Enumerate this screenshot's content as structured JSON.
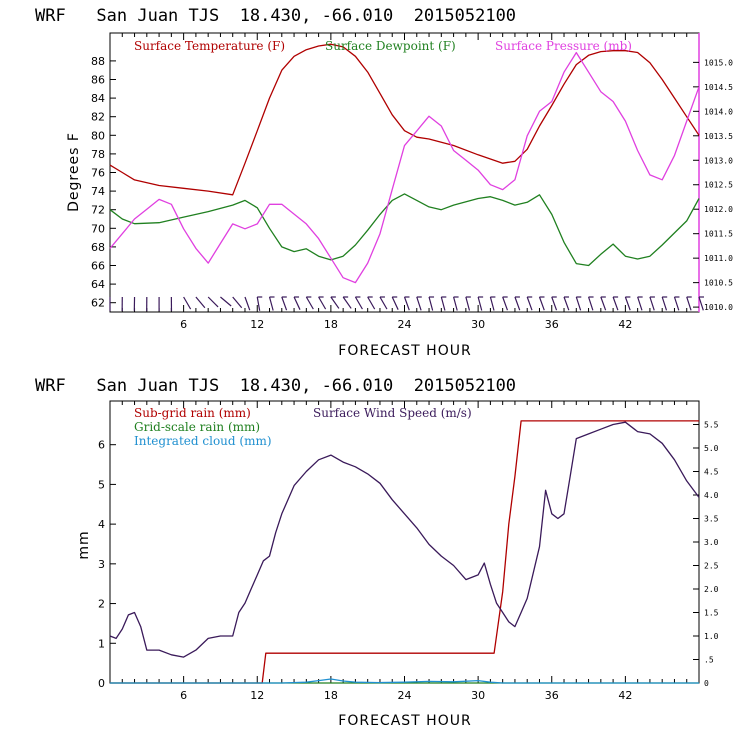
{
  "chart_data": [
    {
      "type": "line",
      "title": "WRF   San Juan TJS  18.430, -66.010  2015052100",
      "xlabel": "FORECAST HOUR",
      "ylabel": "Degrees F",
      "xlim": [
        0,
        48
      ],
      "ylim": [
        61,
        91
      ],
      "y2lim": [
        1009.9,
        1015.6
      ],
      "x_ticks": [
        6,
        12,
        18,
        24,
        30,
        36,
        42
      ],
      "y_ticks": [
        62,
        64,
        66,
        68,
        70,
        72,
        74,
        76,
        78,
        80,
        82,
        84,
        86,
        88
      ],
      "y2_ticks": [
        "1010.0",
        "1010.5",
        "1011.0",
        "1011.5",
        "1012.0",
        "1012.5",
        "1013.0",
        "1013.5",
        "1014.0",
        "1014.5",
        "1015.0"
      ],
      "legend_position": "top",
      "series": [
        {
          "name": "Surface Temperature (F)",
          "color": "#b00000",
          "axis": "left",
          "x": [
            0,
            1,
            2,
            4,
            6,
            8,
            10,
            11,
            12,
            13,
            14,
            15,
            16,
            17,
            18,
            19,
            20,
            21,
            22,
            23,
            24,
            25,
            26,
            28,
            30,
            32,
            33,
            34,
            35,
            36,
            37,
            38,
            39,
            40,
            41,
            42,
            43,
            44,
            45,
            46,
            47,
            48
          ],
          "values": [
            76.8,
            76.0,
            75.2,
            74.6,
            74.3,
            74.0,
            73.6,
            77.0,
            80.5,
            84.0,
            87.0,
            88.5,
            89.2,
            89.6,
            89.8,
            89.5,
            88.5,
            86.8,
            84.5,
            82.2,
            80.5,
            79.8,
            79.6,
            78.9,
            77.9,
            77.0,
            77.2,
            78.5,
            81.0,
            83.2,
            85.5,
            87.6,
            88.6,
            89.0,
            89.1,
            89.1,
            88.9,
            87.8,
            86.0,
            84.0,
            82.0,
            80.0
          ]
        },
        {
          "name": "Surface Dewpoint (F)",
          "color": "#208020",
          "axis": "left",
          "x": [
            0,
            1,
            2,
            4,
            6,
            8,
            10,
            11,
            12,
            13,
            14,
            15,
            16,
            17,
            18,
            19,
            20,
            21,
            22,
            23,
            24,
            25,
            26,
            27,
            28,
            30,
            31,
            32,
            33,
            34,
            35,
            36,
            37,
            38,
            39,
            40,
            41,
            42,
            43,
            44,
            45,
            46,
            47,
            48
          ],
          "values": [
            72.0,
            71.0,
            70.5,
            70.6,
            71.2,
            71.8,
            72.5,
            73.0,
            72.2,
            70.0,
            68.0,
            67.5,
            67.8,
            67.0,
            66.6,
            67.0,
            68.2,
            69.8,
            71.5,
            73.0,
            73.7,
            73.0,
            72.3,
            72.0,
            72.5,
            73.2,
            73.4,
            73.0,
            72.5,
            72.8,
            73.6,
            71.5,
            68.5,
            66.2,
            66.0,
            67.2,
            68.3,
            67.0,
            66.7,
            67.0,
            68.2,
            69.5,
            70.8,
            73.2
          ]
        },
        {
          "name": "Surface Pressure (mb)",
          "color": "#e040e0",
          "axis": "right",
          "x": [
            0,
            1,
            2,
            3,
            4,
            5,
            6,
            7,
            8,
            9,
            10,
            11,
            12,
            13,
            14,
            15,
            16,
            17,
            18,
            19,
            20,
            21,
            22,
            23,
            24,
            25,
            26,
            27,
            28,
            29,
            30,
            31,
            32,
            33,
            34,
            35,
            36,
            37,
            38,
            39,
            40,
            41,
            42,
            43,
            44,
            45,
            46,
            47,
            48
          ],
          "values": [
            1011.2,
            1011.5,
            1011.8,
            1012.0,
            1012.2,
            1012.1,
            1011.6,
            1011.2,
            1010.9,
            1011.3,
            1011.7,
            1011.6,
            1011.7,
            1012.1,
            1012.1,
            1011.9,
            1011.7,
            1011.4,
            1011.0,
            1010.6,
            1010.5,
            1010.9,
            1011.5,
            1012.4,
            1013.3,
            1013.6,
            1013.9,
            1013.7,
            1013.2,
            1013.0,
            1012.8,
            1012.5,
            1012.4,
            1012.6,
            1013.5,
            1014.0,
            1014.2,
            1014.8,
            1015.2,
            1014.8,
            1014.4,
            1014.2,
            1013.8,
            1013.2,
            1012.7,
            1012.6,
            1013.1,
            1013.8,
            1014.5
          ]
        }
      ],
      "wind_barbs": {
        "color": "#3a1a5a",
        "x": [
          0,
          1,
          2,
          3,
          4,
          5,
          6,
          7,
          8,
          9,
          10,
          11,
          12,
          13,
          14,
          15,
          16,
          17,
          18,
          19,
          20,
          21,
          22,
          23,
          24,
          25,
          26,
          27,
          28,
          29,
          30,
          31,
          32,
          33,
          34,
          35,
          36,
          37,
          38,
          39,
          40,
          41,
          42,
          43,
          44,
          45,
          46,
          47,
          48
        ],
        "angle": [
          90,
          95,
          100,
          95,
          90,
          85,
          60,
          50,
          45,
          40,
          50,
          70,
          80,
          75,
          70,
          65,
          60,
          60,
          55,
          55,
          60,
          60,
          60,
          65,
          70,
          72,
          75,
          75,
          75,
          75,
          75,
          75,
          70,
          70,
          70,
          70,
          70,
          70,
          72,
          72,
          70,
          70,
          70,
          72,
          72,
          72,
          72,
          72,
          72
        ]
      }
    },
    {
      "type": "line",
      "title": "WRF   San Juan TJS  18.430, -66.010  2015052100",
      "xlabel": "FORECAST HOUR",
      "ylabel": "mm",
      "xlim": [
        0,
        48
      ],
      "ylim": [
        0,
        7.1
      ],
      "y2lim": [
        0,
        6.0
      ],
      "x_ticks": [
        6,
        12,
        18,
        24,
        30,
        36,
        42
      ],
      "y_ticks": [
        0,
        1,
        2,
        3,
        4,
        5,
        6
      ],
      "y2_ticks": [
        "0",
        ".5",
        "1.0",
        "1.5",
        "2.0",
        "2.5",
        "3.0",
        "3.5",
        "4.0",
        "4.5",
        "5.0",
        "5.5"
      ],
      "legend_position": "top-left",
      "series": [
        {
          "name": "Sub-grid rain (mm)",
          "color": "#b00000",
          "axis": "left",
          "x": [
            0,
            12.4,
            12.7,
            31.3,
            32.0,
            32.5,
            33.0,
            33.5,
            48
          ],
          "values": [
            0,
            0,
            0.75,
            0.75,
            2.3,
            4.0,
            5.2,
            6.6,
            6.6
          ]
        },
        {
          "name": "Grid-scale rain (mm)",
          "color": "#208020",
          "axis": "left",
          "x": [
            0,
            48
          ],
          "values": [
            0,
            0
          ]
        },
        {
          "name": "Integrated cloud (mm)",
          "color": "#2090d0",
          "axis": "left",
          "x": [
            0,
            14,
            16,
            17,
            18,
            19,
            20,
            22,
            24,
            26,
            28,
            30,
            31,
            32,
            48
          ],
          "values": [
            0,
            0,
            0.02,
            0.06,
            0.1,
            0.05,
            0.02,
            0.01,
            0.02,
            0.04,
            0.03,
            0.06,
            0.02,
            0,
            0
          ]
        },
        {
          "name": "Surface Wind Speed (m/s)",
          "color": "#3a1a5a",
          "axis": "right",
          "x": [
            0,
            0.5,
            1,
            1.5,
            2,
            2.5,
            3,
            4,
            5,
            6,
            7,
            8,
            9,
            10,
            10.5,
            11,
            11.5,
            12,
            12.5,
            13,
            13.5,
            14,
            15,
            16,
            17,
            18,
            19,
            20,
            21,
            22,
            23,
            24,
            25,
            26,
            27,
            28,
            29,
            30,
            30.5,
            31,
            31.5,
            32,
            32.5,
            33,
            33.5,
            34,
            35,
            35.5,
            36,
            36.5,
            37,
            37.5,
            38,
            39,
            40,
            41,
            42,
            43,
            44,
            45,
            46,
            47,
            48
          ],
          "values": [
            1.0,
            0.95,
            1.15,
            1.45,
            1.5,
            1.2,
            0.7,
            0.7,
            0.6,
            0.55,
            0.7,
            0.95,
            1.0,
            1.0,
            1.5,
            1.7,
            2.0,
            2.3,
            2.6,
            2.7,
            3.2,
            3.6,
            4.2,
            4.5,
            4.75,
            4.85,
            4.7,
            4.6,
            4.45,
            4.25,
            3.9,
            3.6,
            3.3,
            2.95,
            2.7,
            2.5,
            2.2,
            2.3,
            2.55,
            2.1,
            1.7,
            1.5,
            1.3,
            1.2,
            1.5,
            1.8,
            2.9,
            4.1,
            3.6,
            3.5,
            3.6,
            4.4,
            5.2,
            5.3,
            5.4,
            5.5,
            5.55,
            5.35,
            5.3,
            5.1,
            4.75,
            4.3,
            3.95
          ]
        }
      ]
    }
  ]
}
